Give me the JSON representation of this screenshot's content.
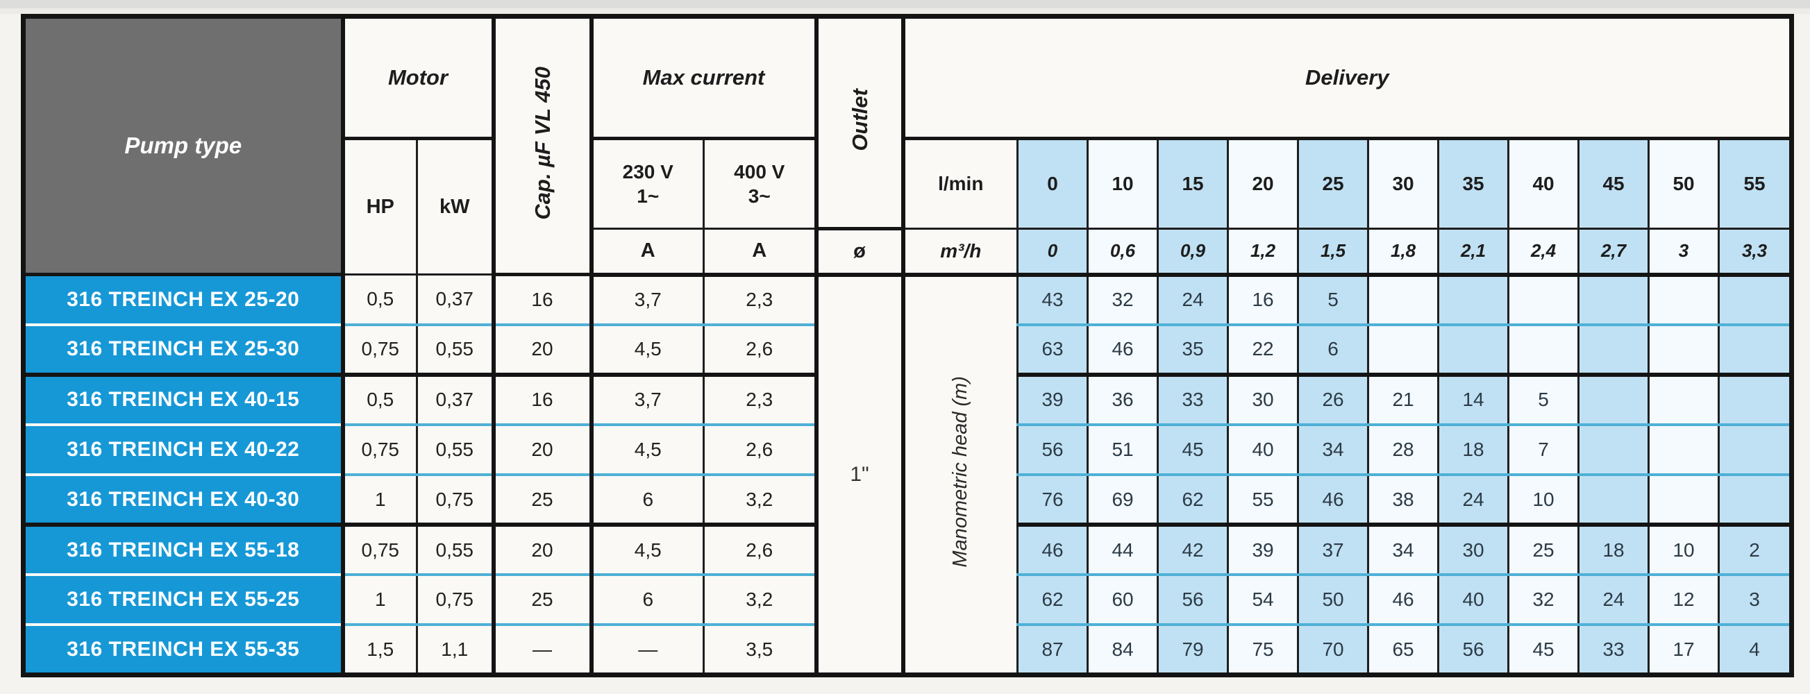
{
  "table": {
    "header": {
      "pump_type": "Pump type",
      "motor": "Motor",
      "hp": "HP",
      "kw": "kW",
      "cap_label": "Cap. µF VL 450",
      "max_current": "Max current",
      "v230": "230 V",
      "v230_phase": "1~",
      "v400": "400 V",
      "v400_phase": "3~",
      "amp_230": "A",
      "amp_400": "A",
      "outlet": "Outlet",
      "diameter": "ø",
      "delivery": "Delivery",
      "lmin": "l/min",
      "m3h": "m³/h",
      "lmin_values": [
        "0",
        "10",
        "15",
        "20",
        "25",
        "30",
        "35",
        "40",
        "45",
        "50",
        "55"
      ],
      "m3h_values": [
        "0",
        "0,6",
        "0,9",
        "1,2",
        "1,5",
        "1,8",
        "2,1",
        "2,4",
        "2,7",
        "3",
        "3,3"
      ]
    },
    "body": {
      "outlet_value": "1\"",
      "head_label": "Manometric head (m)",
      "rows": [
        {
          "name": "316 TREINCH EX 25-20",
          "hp": "0,5",
          "kw": "0,37",
          "cap": "16",
          "a230": "3,7",
          "a400": "2,3",
          "group_end": false,
          "delivery": [
            "43",
            "32",
            "24",
            "16",
            "5",
            "",
            "",
            "",
            "",
            "",
            ""
          ]
        },
        {
          "name": "316 TREINCH EX 25-30",
          "hp": "0,75",
          "kw": "0,55",
          "cap": "20",
          "a230": "4,5",
          "a400": "2,6",
          "group_end": true,
          "delivery": [
            "63",
            "46",
            "35",
            "22",
            "6",
            "",
            "",
            "",
            "",
            "",
            ""
          ]
        },
        {
          "name": "316 TREINCH EX 40-15",
          "hp": "0,5",
          "kw": "0,37",
          "cap": "16",
          "a230": "3,7",
          "a400": "2,3",
          "group_end": false,
          "delivery": [
            "39",
            "36",
            "33",
            "30",
            "26",
            "21",
            "14",
            "5",
            "",
            "",
            ""
          ]
        },
        {
          "name": "316 TREINCH EX 40-22",
          "hp": "0,75",
          "kw": "0,55",
          "cap": "20",
          "a230": "4,5",
          "a400": "2,6",
          "group_end": false,
          "delivery": [
            "56",
            "51",
            "45",
            "40",
            "34",
            "28",
            "18",
            "7",
            "",
            "",
            ""
          ]
        },
        {
          "name": "316 TREINCH EX 40-30",
          "hp": "1",
          "kw": "0,75",
          "cap": "25",
          "a230": "6",
          "a400": "3,2",
          "group_end": true,
          "delivery": [
            "76",
            "69",
            "62",
            "55",
            "46",
            "38",
            "24",
            "10",
            "",
            "",
            ""
          ]
        },
        {
          "name": "316 TREINCH EX 55-18",
          "hp": "0,75",
          "kw": "0,55",
          "cap": "20",
          "a230": "4,5",
          "a400": "2,6",
          "group_end": false,
          "delivery": [
            "46",
            "44",
            "42",
            "39",
            "37",
            "34",
            "30",
            "25",
            "18",
            "10",
            "2"
          ]
        },
        {
          "name": "316 TREINCH EX 55-25",
          "hp": "1",
          "kw": "0,75",
          "cap": "25",
          "a230": "6",
          "a400": "3,2",
          "group_end": false,
          "delivery": [
            "62",
            "60",
            "56",
            "54",
            "50",
            "46",
            "40",
            "32",
            "24",
            "12",
            "3"
          ]
        },
        {
          "name": "316 TREINCH EX 55-35",
          "hp": "1,5",
          "kw": "1,1",
          "cap": "—",
          "a230": "—",
          "a400": "3,5",
          "group_end": true,
          "delivery": [
            "87",
            "84",
            "79",
            "75",
            "70",
            "65",
            "56",
            "45",
            "33",
            "17",
            "4"
          ]
        }
      ]
    },
    "colors": {
      "name_blue": "#1798d6",
      "cell_blue": "#c0e1f3",
      "cell_white": "#f4fafd",
      "header_gray": "#6f6f6f",
      "row_separator_cyan": "#4fb0d6",
      "line_black": "#141414"
    }
  }
}
